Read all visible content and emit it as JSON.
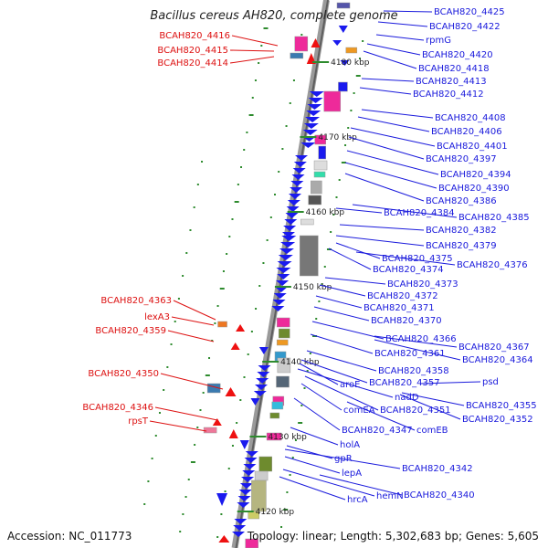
{
  "title": "Bacillus cereus AH820, complete genome",
  "accession": "Accession: NC_011773",
  "topology": "Topology: linear; Length: 5,302,683 bp; Genes: 5,605",
  "colors": {
    "forward_label": "#1a1adc",
    "reverse_label": "#dd1111",
    "forward_gene": "#1a1aee",
    "reverse_gene": "#ee1111",
    "backbone": "#777777"
  },
  "ticks": [
    "4180 kbp",
    "4170 kbp",
    "4160 kbp",
    "4150 kbp",
    "4140 kbp",
    "4130 kbp",
    "4120 kbp"
  ],
  "right_labels": [
    "BCAH820_4425",
    "BCAH820_4422",
    "rpmG",
    "BCAH820_4420",
    "BCAH820_4418",
    "BCAH820_4413",
    "BCAH820_4412",
    "BCAH820_4408",
    "BCAH820_4406",
    "BCAH820_4401",
    "BCAH820_4397",
    "BCAH820_4394",
    "BCAH820_4390",
    "BCAH820_4386",
    "BCAH820_4384",
    "BCAH820_4385",
    "BCAH820_4382",
    "BCAH820_4379",
    "BCAH820_4375",
    "BCAH820_4376",
    "BCAH820_4374",
    "BCAH820_4373",
    "BCAH820_4372",
    "BCAH820_4371",
    "BCAH820_4370",
    "BCAH820_4366",
    "BCAH820_4367",
    "BCAH820_4361",
    "BCAH820_4364",
    "BCAH820_4358",
    "aroE",
    "BCAH820_4357",
    "psd",
    "nadD",
    "BCAH820_4351",
    "BCAH820_4355",
    "BCAH820_4352",
    "comEA",
    "BCAH820_4347",
    "comEB",
    "holA",
    "gpR",
    "lepA",
    "BCAH820_4342",
    "hemN",
    "BCAH820_4340",
    "hrcA"
  ],
  "left_labels": [
    "BCAH820_4416",
    "BCAH820_4415",
    "BCAH820_4414",
    "BCAH820_4363",
    "lexA3",
    "BCAH820_4359",
    "BCAH820_4350",
    "BCAH820_4346",
    "rpsT"
  ]
}
